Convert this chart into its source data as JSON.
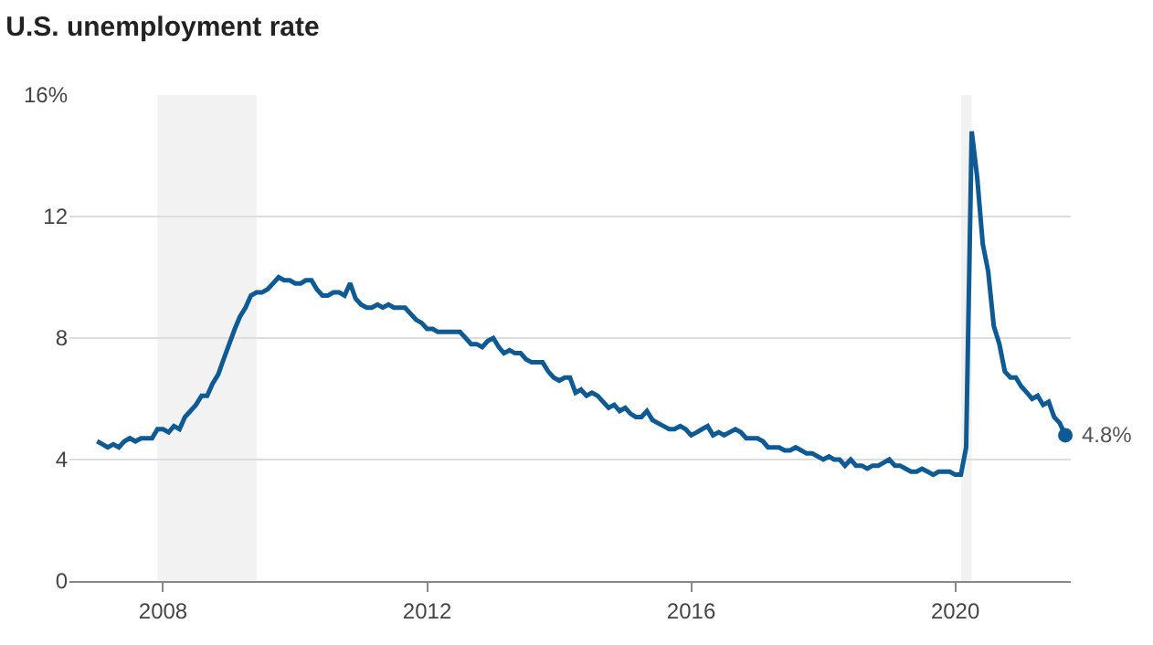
{
  "chart_data": {
    "type": "line",
    "title": "U.S. unemployment rate",
    "x": [
      "2007-01",
      "2007-02",
      "2007-03",
      "2007-04",
      "2007-05",
      "2007-06",
      "2007-07",
      "2007-08",
      "2007-09",
      "2007-10",
      "2007-11",
      "2007-12",
      "2008-01",
      "2008-02",
      "2008-03",
      "2008-04",
      "2008-05",
      "2008-06",
      "2008-07",
      "2008-08",
      "2008-09",
      "2008-10",
      "2008-11",
      "2008-12",
      "2009-01",
      "2009-02",
      "2009-03",
      "2009-04",
      "2009-05",
      "2009-06",
      "2009-07",
      "2009-08",
      "2009-09",
      "2009-10",
      "2009-11",
      "2009-12",
      "2010-01",
      "2010-02",
      "2010-03",
      "2010-04",
      "2010-05",
      "2010-06",
      "2010-07",
      "2010-08",
      "2010-09",
      "2010-10",
      "2010-11",
      "2010-12",
      "2011-01",
      "2011-02",
      "2011-03",
      "2011-04",
      "2011-05",
      "2011-06",
      "2011-07",
      "2011-08",
      "2011-09",
      "2011-10",
      "2011-11",
      "2011-12",
      "2012-01",
      "2012-02",
      "2012-03",
      "2012-04",
      "2012-05",
      "2012-06",
      "2012-07",
      "2012-08",
      "2012-09",
      "2012-10",
      "2012-11",
      "2012-12",
      "2013-01",
      "2013-02",
      "2013-03",
      "2013-04",
      "2013-05",
      "2013-06",
      "2013-07",
      "2013-08",
      "2013-09",
      "2013-10",
      "2013-11",
      "2013-12",
      "2014-01",
      "2014-02",
      "2014-03",
      "2014-04",
      "2014-05",
      "2014-06",
      "2014-07",
      "2014-08",
      "2014-09",
      "2014-10",
      "2014-11",
      "2014-12",
      "2015-01",
      "2015-02",
      "2015-03",
      "2015-04",
      "2015-05",
      "2015-06",
      "2015-07",
      "2015-08",
      "2015-09",
      "2015-10",
      "2015-11",
      "2015-12",
      "2016-01",
      "2016-02",
      "2016-03",
      "2016-04",
      "2016-05",
      "2016-06",
      "2016-07",
      "2016-08",
      "2016-09",
      "2016-10",
      "2016-11",
      "2016-12",
      "2017-01",
      "2017-02",
      "2017-03",
      "2017-04",
      "2017-05",
      "2017-06",
      "2017-07",
      "2017-08",
      "2017-09",
      "2017-10",
      "2017-11",
      "2017-12",
      "2018-01",
      "2018-02",
      "2018-03",
      "2018-04",
      "2018-05",
      "2018-06",
      "2018-07",
      "2018-08",
      "2018-09",
      "2018-10",
      "2018-11",
      "2018-12",
      "2019-01",
      "2019-02",
      "2019-03",
      "2019-04",
      "2019-05",
      "2019-06",
      "2019-07",
      "2019-08",
      "2019-09",
      "2019-10",
      "2019-11",
      "2019-12",
      "2020-01",
      "2020-02",
      "2020-03",
      "2020-04",
      "2020-05",
      "2020-06",
      "2020-07",
      "2020-08",
      "2020-09",
      "2020-10",
      "2020-11",
      "2020-12",
      "2021-01",
      "2021-02",
      "2021-03",
      "2021-04",
      "2021-05",
      "2021-06",
      "2021-07",
      "2021-08",
      "2021-09"
    ],
    "series": [
      {
        "color": "#0d5a94",
        "values": [
          4.6,
          4.5,
          4.4,
          4.5,
          4.4,
          4.6,
          4.7,
          4.6,
          4.7,
          4.7,
          4.7,
          5.0,
          5.0,
          4.9,
          5.1,
          5.0,
          5.4,
          5.6,
          5.8,
          6.1,
          6.1,
          6.5,
          6.8,
          7.3,
          7.8,
          8.3,
          8.7,
          9.0,
          9.4,
          9.5,
          9.5,
          9.6,
          9.8,
          10.0,
          9.9,
          9.9,
          9.8,
          9.8,
          9.9,
          9.9,
          9.6,
          9.4,
          9.4,
          9.5,
          9.5,
          9.4,
          9.8,
          9.3,
          9.1,
          9.0,
          9.0,
          9.1,
          9.0,
          9.1,
          9.0,
          9.0,
          9.0,
          8.8,
          8.6,
          8.5,
          8.3,
          8.3,
          8.2,
          8.2,
          8.2,
          8.2,
          8.2,
          8.0,
          7.8,
          7.8,
          7.7,
          7.9,
          8.0,
          7.7,
          7.5,
          7.6,
          7.5,
          7.5,
          7.3,
          7.2,
          7.2,
          7.2,
          6.9,
          6.7,
          6.6,
          6.7,
          6.7,
          6.2,
          6.3,
          6.1,
          6.2,
          6.1,
          5.9,
          5.7,
          5.8,
          5.6,
          5.7,
          5.5,
          5.4,
          5.4,
          5.6,
          5.3,
          5.2,
          5.1,
          5.0,
          5.0,
          5.1,
          5.0,
          4.8,
          4.9,
          5.0,
          5.1,
          4.8,
          4.9,
          4.8,
          4.9,
          5.0,
          4.9,
          4.7,
          4.7,
          4.7,
          4.6,
          4.4,
          4.4,
          4.4,
          4.3,
          4.3,
          4.4,
          4.3,
          4.2,
          4.2,
          4.1,
          4.0,
          4.1,
          4.0,
          4.0,
          3.8,
          4.0,
          3.8,
          3.8,
          3.7,
          3.8,
          3.8,
          3.9,
          4.0,
          3.8,
          3.8,
          3.7,
          3.6,
          3.6,
          3.7,
          3.6,
          3.5,
          3.6,
          3.6,
          3.6,
          3.5,
          3.5,
          4.4,
          14.8,
          13.3,
          11.1,
          10.2,
          8.4,
          7.8,
          6.9,
          6.7,
          6.7,
          6.4,
          6.2,
          6.0,
          6.1,
          5.8,
          5.9,
          5.4,
          5.2,
          4.8
        ]
      },
      {
        "type": "scatter",
        "color": "#0d5a94",
        "marker": "circle",
        "x": [
          "2021-09"
        ],
        "values": [
          4.8
        ]
      }
    ],
    "xlim": [
      "2006-08",
      "2021-10"
    ],
    "xticks": [
      {
        "value": "2008",
        "label": "2008"
      },
      {
        "value": "2012",
        "label": "2012"
      },
      {
        "value": "2016",
        "label": "2016"
      },
      {
        "value": "2020",
        "label": "2020"
      }
    ],
    "ylim": [
      0,
      16
    ],
    "yticks": [
      0,
      4,
      8,
      12,
      {
        "value": 16,
        "label": "16%"
      }
    ],
    "grid": "y",
    "bands": [
      {
        "axis": "x",
        "from": "2007-12",
        "to": "2009-06",
        "color": "#f2f2f2"
      },
      {
        "axis": "x",
        "from": "2020-02",
        "to": "2020-04",
        "color": "#f2f2f2"
      }
    ],
    "annotations": [
      {
        "text": "4.8%",
        "x": "2021-09",
        "y": 4.8
      }
    ]
  }
}
